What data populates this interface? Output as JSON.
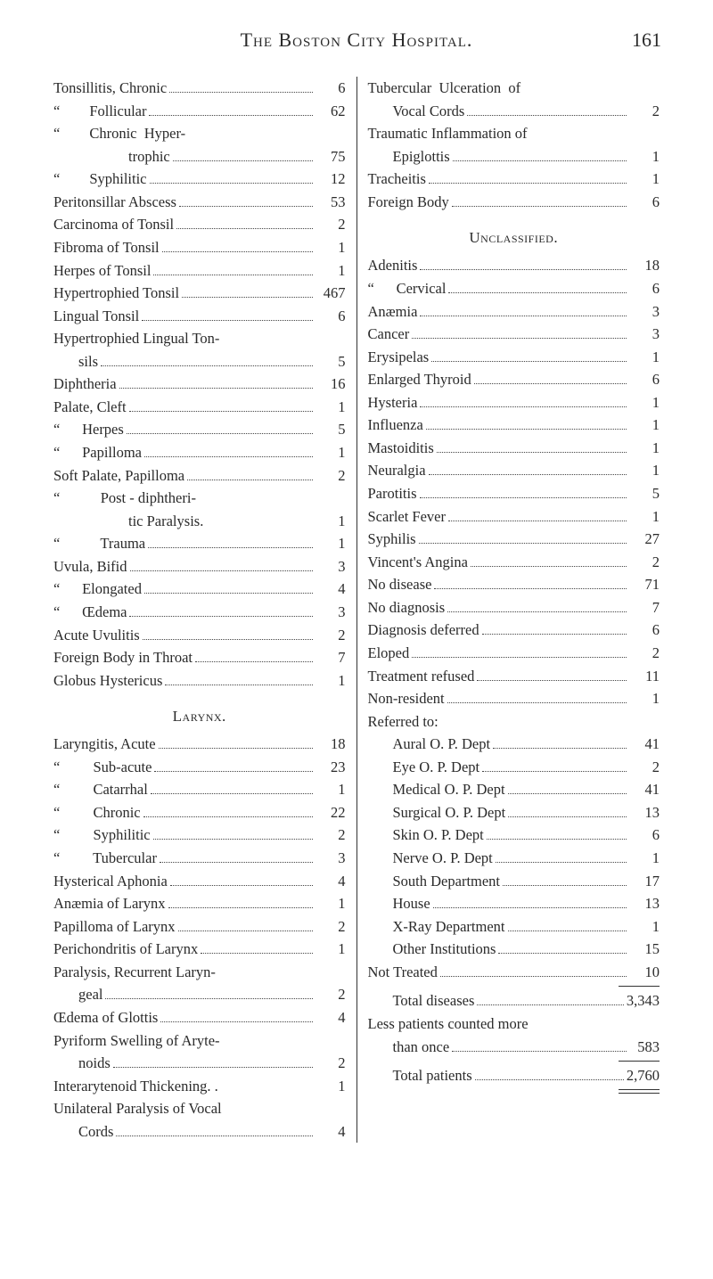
{
  "header": {
    "title": "The Boston City Hospital.",
    "page_number": "161"
  },
  "left_column": [
    {
      "type": "entry",
      "label": "Tonsillitis, Chronic",
      "value": "6"
    },
    {
      "type": "entry",
      "label": "“        Follicular",
      "value": "62",
      "indent": 0
    },
    {
      "type": "entry",
      "label": "“        Chronic  Hyper-",
      "value": "",
      "no_dots": true
    },
    {
      "type": "entry",
      "label": "trophic",
      "value": "75",
      "indent": 3
    },
    {
      "type": "entry",
      "label": "“        Syphilitic",
      "value": "12"
    },
    {
      "type": "entry",
      "label": "Peritonsillar Abscess",
      "value": "53"
    },
    {
      "type": "entry",
      "label": "Carcinoma of Tonsil",
      "value": "2"
    },
    {
      "type": "entry",
      "label": "Fibroma of Tonsil",
      "value": "1"
    },
    {
      "type": "entry",
      "label": "Herpes of Tonsil",
      "value": "1"
    },
    {
      "type": "entry",
      "label": "Hypertrophied Tonsil",
      "value": "467"
    },
    {
      "type": "entry",
      "label": "Lingual Tonsil",
      "value": "6"
    },
    {
      "type": "entry",
      "label": "Hypertrophied Lingual Ton-",
      "value": "",
      "no_dots": true
    },
    {
      "type": "entry",
      "label": "sils",
      "value": "5",
      "indent": 1
    },
    {
      "type": "entry",
      "label": "Diphtheria",
      "value": "16"
    },
    {
      "type": "entry",
      "label": "Palate, Cleft",
      "value": "1"
    },
    {
      "type": "entry",
      "label": "“      Herpes",
      "value": "5"
    },
    {
      "type": "entry",
      "label": "“      Papilloma",
      "value": "1"
    },
    {
      "type": "entry",
      "label": "Soft Palate, Papilloma",
      "value": "2"
    },
    {
      "type": "entry",
      "label": "“           Post - diphtheri-",
      "value": "",
      "no_dots": true
    },
    {
      "type": "entry",
      "label": "tic Paralysis.",
      "value": "1",
      "indent": 3,
      "no_dots": true
    },
    {
      "type": "entry",
      "label": "“           Trauma",
      "value": "1"
    },
    {
      "type": "entry",
      "label": "Uvula, Bifid",
      "value": "3"
    },
    {
      "type": "entry",
      "label": "“      Elongated",
      "value": "4"
    },
    {
      "type": "entry",
      "label": "“      Œdema",
      "value": "3"
    },
    {
      "type": "entry",
      "label": "Acute Uvulitis",
      "value": "2"
    },
    {
      "type": "entry",
      "label": "Foreign Body in Throat",
      "value": "7"
    },
    {
      "type": "entry",
      "label": "Globus Hystericus",
      "value": "1"
    },
    {
      "type": "heading",
      "text": "Larynx."
    },
    {
      "type": "entry",
      "label": "Laryngitis, Acute",
      "value": "18"
    },
    {
      "type": "entry",
      "label": "“         Sub-acute",
      "value": "23"
    },
    {
      "type": "entry",
      "label": "“         Catarrhal",
      "value": "1"
    },
    {
      "type": "entry",
      "label": "“         Chronic",
      "value": "22"
    },
    {
      "type": "entry",
      "label": "“         Syphilitic",
      "value": "2"
    },
    {
      "type": "entry",
      "label": "“         Tubercular",
      "value": "3"
    },
    {
      "type": "entry",
      "label": "Hysterical Aphonia",
      "value": "4"
    },
    {
      "type": "entry",
      "label": "Anæmia of Larynx",
      "value": "1"
    },
    {
      "type": "entry",
      "label": "Papilloma of Larynx",
      "value": "2"
    },
    {
      "type": "entry",
      "label": "Perichondritis of Larynx",
      "value": "1"
    },
    {
      "type": "entry",
      "label": "Paralysis, Recurrent Laryn-",
      "value": "",
      "no_dots": true
    },
    {
      "type": "entry",
      "label": "geal",
      "value": "2",
      "indent": 1
    },
    {
      "type": "entry",
      "label": "Œdema of Glottis",
      "value": "4"
    },
    {
      "type": "entry",
      "label": "Pyriform Swelling of Aryte-",
      "value": "",
      "no_dots": true
    },
    {
      "type": "entry",
      "label": "noids",
      "value": "2",
      "indent": 1
    },
    {
      "type": "entry",
      "label": "Interarytenoid Thickening. .",
      "value": "1",
      "no_dots": true
    },
    {
      "type": "entry",
      "label": "Unilateral Paralysis of Vocal",
      "value": "",
      "no_dots": true
    },
    {
      "type": "entry",
      "label": "Cords",
      "value": "4",
      "indent": 1
    }
  ],
  "right_column": [
    {
      "type": "entry",
      "label": "Tubercular  Ulceration  of",
      "value": "",
      "no_dots": true
    },
    {
      "type": "entry",
      "label": "Vocal Cords",
      "value": "2",
      "indent": 1
    },
    {
      "type": "entry",
      "label": "Traumatic Inflammation of",
      "value": "",
      "no_dots": true
    },
    {
      "type": "entry",
      "label": "Epiglottis",
      "value": "1",
      "indent": 1
    },
    {
      "type": "entry",
      "label": "Tracheitis",
      "value": "1"
    },
    {
      "type": "entry",
      "label": "Foreign Body",
      "value": "6"
    },
    {
      "type": "heading",
      "text": "Unclassified."
    },
    {
      "type": "entry",
      "label": "Adenitis",
      "value": "18"
    },
    {
      "type": "entry",
      "label": "“      Cervical",
      "value": "6"
    },
    {
      "type": "entry",
      "label": "Anæmia",
      "value": "3"
    },
    {
      "type": "entry",
      "label": "Cancer",
      "value": "3"
    },
    {
      "type": "entry",
      "label": "Erysipelas",
      "value": "1"
    },
    {
      "type": "entry",
      "label": "Enlarged Thyroid",
      "value": "6"
    },
    {
      "type": "entry",
      "label": "Hysteria",
      "value": "1"
    },
    {
      "type": "entry",
      "label": "Influenza",
      "value": "1"
    },
    {
      "type": "entry",
      "label": "Mastoiditis",
      "value": "1"
    },
    {
      "type": "entry",
      "label": "Neuralgia",
      "value": "1"
    },
    {
      "type": "entry",
      "label": "Parotitis",
      "value": "5"
    },
    {
      "type": "entry",
      "label": "Scarlet Fever",
      "value": "1"
    },
    {
      "type": "entry",
      "label": "Syphilis",
      "value": "27"
    },
    {
      "type": "entry",
      "label": "Vincent's Angina",
      "value": "2"
    },
    {
      "type": "entry",
      "label": "No disease",
      "value": "71"
    },
    {
      "type": "entry",
      "label": "No diagnosis",
      "value": "7"
    },
    {
      "type": "entry",
      "label": "Diagnosis deferred",
      "value": "6"
    },
    {
      "type": "entry",
      "label": "Eloped",
      "value": "2"
    },
    {
      "type": "entry",
      "label": "Treatment refused",
      "value": "11"
    },
    {
      "type": "entry",
      "label": "Non-resident",
      "value": "1"
    },
    {
      "type": "entry",
      "label": "Referred to:",
      "value": "",
      "no_dots": true
    },
    {
      "type": "entry",
      "label": "Aural O. P. Dept",
      "value": "41",
      "indent": 1
    },
    {
      "type": "entry",
      "label": "Eye O. P. Dept",
      "value": "2",
      "indent": 1
    },
    {
      "type": "entry",
      "label": "Medical O. P. Dept",
      "value": "41",
      "indent": 1
    },
    {
      "type": "entry",
      "label": "Surgical O. P. Dept",
      "value": "13",
      "indent": 1
    },
    {
      "type": "entry",
      "label": "Skin O. P. Dept",
      "value": "6",
      "indent": 1
    },
    {
      "type": "entry",
      "label": "Nerve O. P. Dept",
      "value": "1",
      "indent": 1
    },
    {
      "type": "entry",
      "label": "South Department",
      "value": "17",
      "indent": 1
    },
    {
      "type": "entry",
      "label": "House",
      "value": "13",
      "indent": 1
    },
    {
      "type": "entry",
      "label": "X-Ray Department",
      "value": "1",
      "indent": 1
    },
    {
      "type": "entry",
      "label": "Other Institutions",
      "value": "15",
      "indent": 1
    },
    {
      "type": "entry",
      "label": "Not Treated",
      "value": "10"
    },
    {
      "type": "rule"
    },
    {
      "type": "entry",
      "label": "Total diseases",
      "value": "3,343",
      "indent": 1
    },
    {
      "type": "entry",
      "label": "Less patients counted more",
      "value": "",
      "no_dots": true
    },
    {
      "type": "entry",
      "label": "than once",
      "value": "583",
      "indent": 1
    },
    {
      "type": "rule"
    },
    {
      "type": "entry",
      "label": "Total patients",
      "value": "2,760",
      "indent": 1
    },
    {
      "type": "double_rule"
    }
  ]
}
